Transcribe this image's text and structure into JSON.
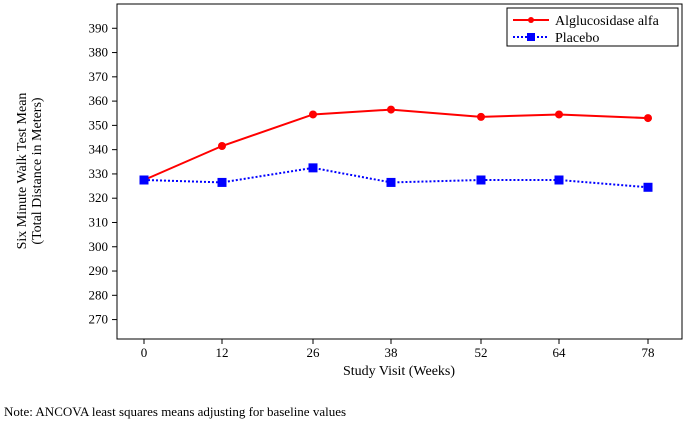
{
  "chart_data": {
    "type": "line",
    "x_categories": [
      "0",
      "12",
      "26",
      "38",
      "52",
      "64",
      "78"
    ],
    "xlabel": "Study Visit (Weeks)",
    "ylabel_line1": "Six Minute Walk Test Mean",
    "ylabel_line2": "(Total Distance in Meters)",
    "ylim": [
      262,
      400
    ],
    "yticks": [
      270,
      280,
      290,
      300,
      310,
      320,
      330,
      340,
      350,
      360,
      370,
      380,
      390
    ],
    "grid": false,
    "legend_position": "top-right",
    "series": [
      {
        "name": "Alglucosidase alfa",
        "color": "#ff0000",
        "line_style": "solid",
        "marker": "circle",
        "values": [
          327.5,
          341.5,
          354.5,
          356.5,
          353.5,
          354.5,
          353
        ]
      },
      {
        "name": "Placebo",
        "color": "#0000ff",
        "line_style": "dotted",
        "marker": "square",
        "values": [
          327.5,
          326.5,
          332.5,
          326.5,
          327.5,
          327.5,
          324.5
        ]
      }
    ]
  },
  "note": "Note: ANCOVA least squares means adjusting for baseline values"
}
